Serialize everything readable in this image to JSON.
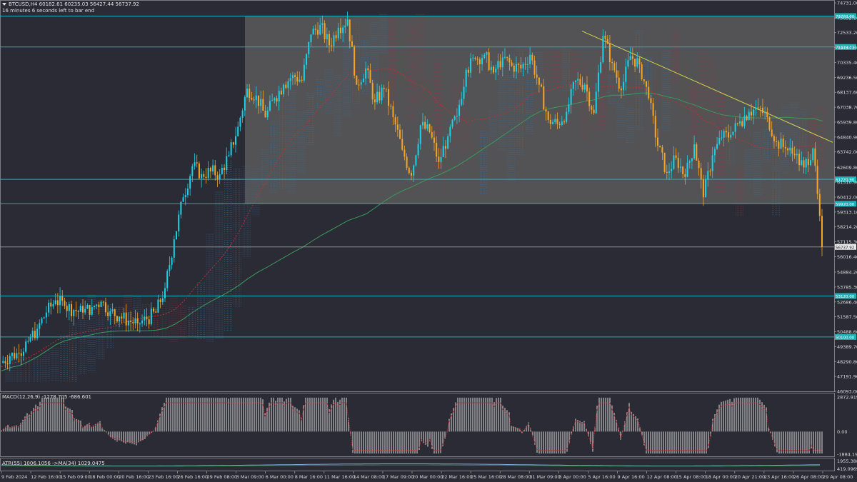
{
  "header": {
    "symbol_line": "BTCUSD,H4  60182.61 60235.03 56427.44 56737.92",
    "timer_line": "16 minutes 6 seconds left to bar end"
  },
  "indicators": {
    "macd_label": "MACD(12,26,9) -1278.705 -686.601",
    "atr_label": "ATR(55) 1006.1056  ->MA(34) 1029.0475"
  },
  "colors": {
    "background": "#2b2b36",
    "bull": "#19d3e8",
    "bear": "#f6a623",
    "level_line": "#1fb0b8",
    "range_box": "#5a5a5c",
    "ma_green": "#3a9a5a",
    "ma_red": "#c0302e",
    "trendline": "#d6d44a",
    "cloud_blue": "#3b6f96",
    "cloud_red": "#8a3b3b"
  },
  "chart_data": {
    "type": "candlestick",
    "symbol": "BTCUSD",
    "timeframe": "H4",
    "ylim": [
      46093.0,
      74731.0
    ],
    "price_axis_ticks": [
      "74731.00",
      "73632.10",
      "72533.20",
      "71434.30",
      "70335.40",
      "69236.50",
      "68137.60",
      "67038.70",
      "65939.80",
      "64840.90",
      "63742.00",
      "62609.80",
      "61510.90",
      "60412.00",
      "59313.10",
      "58214.20",
      "57115.30",
      "56016.40",
      "54884.20",
      "53785.30",
      "52686.40",
      "51587.50",
      "50488.60",
      "49389.70",
      "48290.80",
      "47191.90",
      "46093.00"
    ],
    "time_axis_ticks": [
      "9 Feb 2024",
      "12 Feb 16:00",
      "15 Feb 09:00",
      "18 Feb 00:00",
      "20 Feb 16:00",
      "23 Feb 16:00",
      "26 Feb 16:00",
      "29 Feb 08:00",
      "3 Mar 09:00",
      "6 Mar 00:00",
      "8 Mar 16:00",
      "11 Mar 16:00",
      "14 Mar 08:00",
      "17 Mar 09:00",
      "20 Mar 00:00",
      "22 Mar 16:00",
      "25 Mar 16:00",
      "28 Mar 08:00",
      "31 Mar 09:00",
      "3 Apr 00:00",
      "5 Apr 16:00",
      "9 Apr 16:00",
      "12 Apr 08:00",
      "15 Apr 08:00",
      "18 Apr 00:00",
      "20 Apr 21:00",
      "23 Apr 16:00",
      "26 Apr 08:00",
      "29 Apr 08:00"
    ],
    "horizontal_levels": [
      {
        "price": 73760,
        "tag": "73760.00"
      },
      {
        "price": 71480,
        "tag": "71479.73"
      },
      {
        "price": 61720,
        "tag": "61720.90"
      },
      {
        "price": 59920,
        "tag": "59920.00"
      },
      {
        "price": 53120,
        "tag": "53120.00"
      },
      {
        "price": 50100,
        "tag": "50100.00"
      }
    ],
    "current_price": {
      "price": 56738,
      "tag": "56737.92"
    },
    "range_box": {
      "from_time": "3 Mar 09:00",
      "to_time": "29 Apr 08:00",
      "top": 73760,
      "bottom": 59920
    },
    "trendline": {
      "from": {
        "time": "5 Apr 16:00",
        "price": 72650
      },
      "to": {
        "time": "29 Apr 08:00",
        "price": 64450
      }
    },
    "price_path": [
      [
        0,
        48200
      ],
      [
        1,
        48700
      ],
      [
        2,
        48900
      ],
      [
        3,
        49800
      ],
      [
        4,
        50700
      ],
      [
        5,
        51900
      ],
      [
        6,
        52800
      ],
      [
        7,
        52400
      ],
      [
        8,
        52100
      ],
      [
        9,
        51900
      ],
      [
        10,
        52300
      ],
      [
        11,
        52700
      ],
      [
        12,
        52000
      ],
      [
        13,
        51600
      ],
      [
        14,
        51300
      ],
      [
        15,
        51100
      ],
      [
        16,
        51400
      ],
      [
        17,
        51900
      ],
      [
        18,
        53700
      ],
      [
        19,
        57300
      ],
      [
        20,
        60400
      ],
      [
        21,
        62700
      ],
      [
        22,
        62100
      ],
      [
        23,
        62300
      ],
      [
        24,
        62100
      ],
      [
        25,
        63500
      ],
      [
        26,
        65600
      ],
      [
        27,
        68400
      ],
      [
        28,
        67900
      ],
      [
        29,
        66300
      ],
      [
        30,
        67700
      ],
      [
        31,
        68700
      ],
      [
        32,
        69400
      ],
      [
        33,
        69000
      ],
      [
        34,
        72400
      ],
      [
        35,
        73100
      ],
      [
        36,
        71600
      ],
      [
        37,
        72900
      ],
      [
        38,
        73500
      ],
      [
        39,
        68700
      ],
      [
        40,
        69900
      ],
      [
        41,
        67400
      ],
      [
        42,
        68400
      ],
      [
        43,
        66300
      ],
      [
        44,
        63900
      ],
      [
        45,
        62000
      ],
      [
        46,
        65700
      ],
      [
        47,
        65200
      ],
      [
        48,
        63000
      ],
      [
        49,
        64900
      ],
      [
        50,
        66400
      ],
      [
        51,
        69800
      ],
      [
        52,
        70600
      ],
      [
        53,
        70900
      ],
      [
        54,
        69600
      ],
      [
        55,
        70700
      ],
      [
        56,
        70100
      ],
      [
        57,
        69900
      ],
      [
        58,
        70900
      ],
      [
        59,
        68700
      ],
      [
        60,
        66100
      ],
      [
        61,
        65800
      ],
      [
        62,
        66700
      ],
      [
        63,
        69000
      ],
      [
        64,
        68700
      ],
      [
        65,
        66600
      ],
      [
        66,
        72300
      ],
      [
        67,
        70300
      ],
      [
        68,
        68300
      ],
      [
        69,
        70800
      ],
      [
        70,
        70200
      ],
      [
        71,
        67700
      ],
      [
        72,
        64200
      ],
      [
        73,
        62200
      ],
      [
        74,
        63300
      ],
      [
        75,
        61900
      ],
      [
        76,
        64300
      ],
      [
        77,
        60400
      ],
      [
        78,
        63500
      ],
      [
        79,
        64800
      ],
      [
        80,
        65000
      ],
      [
        81,
        66000
      ],
      [
        82,
        66700
      ],
      [
        83,
        67000
      ],
      [
        84,
        66300
      ],
      [
        85,
        64500
      ],
      [
        86,
        64000
      ],
      [
        87,
        63500
      ],
      [
        88,
        62600
      ],
      [
        89,
        64000
      ],
      [
        90,
        56738
      ]
    ],
    "macd": {
      "label": "MACD(12,26,9)",
      "main": -1278.705,
      "signal": -686.601,
      "ticks": [
        "2872.919",
        "0.00",
        "-1884.198"
      ],
      "ylim": [
        -1884.198,
        2872.919
      ]
    },
    "atr": {
      "label": "ATR(55)",
      "value": 1006.1056,
      "ma_period": 34,
      "ma_value": 1029.0475,
      "ticks": [
        "1955.3885",
        "419.0969"
      ]
    }
  }
}
